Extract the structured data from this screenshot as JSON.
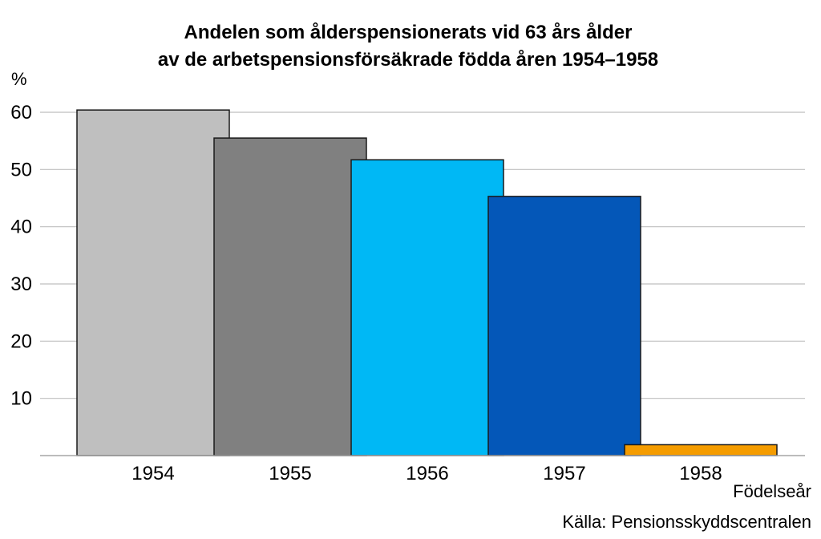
{
  "chart_data": {
    "type": "bar",
    "title_lines": [
      "Andelen som ålderspensionerats vid 63 års ålder",
      "av de arbetspensionsförsäkrade födda åren 1954–1958"
    ],
    "ylabel": "%",
    "xlabel": "Födelseår",
    "source": "Källa: Pensionsskyddscentralen",
    "categories": [
      "1954",
      "1955",
      "1956",
      "1957",
      "1958"
    ],
    "values": [
      60.4,
      55.5,
      51.7,
      45.3,
      1.9
    ],
    "colors": [
      "#bfbfbf",
      "#808080",
      "#00b8f5",
      "#0457b8",
      "#f59c00"
    ],
    "ylim": [
      0,
      60
    ],
    "yticks": [
      10,
      20,
      30,
      40,
      50,
      60
    ],
    "grid": true,
    "legend": "none"
  }
}
